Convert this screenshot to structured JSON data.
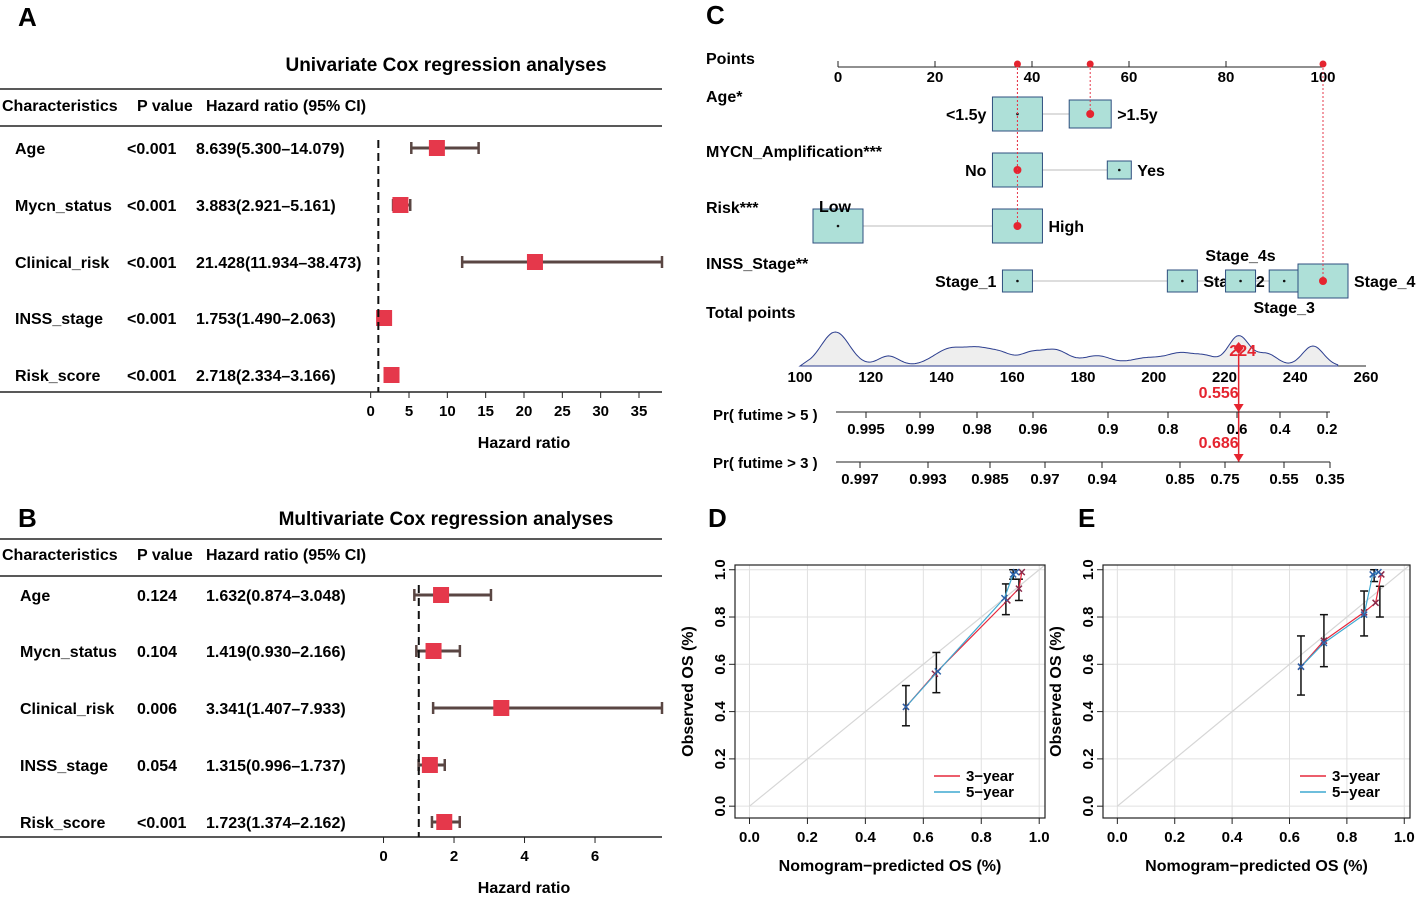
{
  "panels": {
    "A": "A",
    "B": "B",
    "C": "C",
    "D": "D",
    "E": "E"
  },
  "forest_headers": {
    "char": "Characteristics",
    "p": "P value",
    "hr": "Hazard ratio (95% CI)"
  },
  "chart_data": [
    {
      "id": "A",
      "type": "forest",
      "title": "Univariate Cox regression analyses",
      "xlabel": "Hazard ratio",
      "xlim": [
        -1,
        38
      ],
      "xticks": [
        0,
        5,
        10,
        15,
        20,
        25,
        30,
        35
      ],
      "ref": 1,
      "rows": [
        {
          "name": "Age",
          "p": "<0.001",
          "hr_text": "8.639(5.300–14.079)",
          "hr": 8.639,
          "lo": 5.3,
          "hi": 14.079
        },
        {
          "name": "Mycn_status",
          "p": "<0.001",
          "hr_text": "3.883(2.921–5.161)",
          "hr": 3.883,
          "lo": 2.921,
          "hi": 5.161
        },
        {
          "name": "Clinical_risk",
          "p": "<0.001",
          "hr_text": "21.428(11.934–38.473)",
          "hr": 21.428,
          "lo": 11.934,
          "hi": 38.473
        },
        {
          "name": "INSS_stage",
          "p": "<0.001",
          "hr_text": "1.753(1.490–2.063)",
          "hr": 1.753,
          "lo": 1.49,
          "hi": 2.063
        },
        {
          "name": "Risk_score",
          "p": "<0.001",
          "hr_text": "2.718(2.334–3.166)",
          "hr": 2.718,
          "lo": 2.334,
          "hi": 3.166
        }
      ]
    },
    {
      "id": "B",
      "type": "forest",
      "title": "Multivariate Cox regression analyses",
      "xlabel": "Hazard ratio",
      "xlim": [
        -0.1,
        7.9
      ],
      "xticks": [
        0,
        2,
        4,
        6
      ],
      "ref": 1,
      "rows": [
        {
          "name": "Age",
          "p": "0.124",
          "hr_text": "1.632(0.874–3.048)",
          "hr": 1.632,
          "lo": 0.874,
          "hi": 3.048
        },
        {
          "name": "Mycn_status",
          "p": "0.104",
          "hr_text": "1.419(0.930–2.166)",
          "hr": 1.419,
          "lo": 0.93,
          "hi": 2.166
        },
        {
          "name": "Clinical_risk",
          "p": "0.006",
          "hr_text": "3.341(1.407–7.933)",
          "hr": 3.341,
          "lo": 1.407,
          "hi": 7.933
        },
        {
          "name": "INSS_stage",
          "p": "0.054",
          "hr_text": "1.315(0.996–1.737)",
          "hr": 1.315,
          "lo": 0.996,
          "hi": 1.737
        },
        {
          "name": "Risk_score",
          "p": "<0.001",
          "hr_text": "1.723(1.374–2.162)",
          "hr": 1.723,
          "lo": 1.374,
          "hi": 2.162
        }
      ]
    },
    {
      "id": "C",
      "type": "nomogram",
      "points_label": "Points",
      "points_ticks": [
        0,
        20,
        40,
        60,
        80,
        100
      ],
      "variables": [
        {
          "label": "Age*",
          "levels": [
            {
              "name": "<1.5y",
              "points": 37
            },
            {
              "name": ">1.5y",
              "points": 52
            }
          ],
          "selected": ">1.5y"
        },
        {
          "label": "MYCN_Amplification***",
          "levels": [
            {
              "name": "No",
              "points": 37
            },
            {
              "name": "Yes",
              "points": 58
            }
          ],
          "selected": "No"
        },
        {
          "label": "Risk***",
          "levels": [
            {
              "name": "Low",
              "points": 0
            },
            {
              "name": "High",
              "points": 37
            }
          ],
          "selected": "High"
        },
        {
          "label": "INSS_Stage**",
          "levels": [
            {
              "name": "Stage_1",
              "points": 37
            },
            {
              "name": "Stage_2",
              "points": 71
            },
            {
              "name": "Stage_4s",
              "points": 83
            },
            {
              "name": "Stage_3",
              "points": 92
            },
            {
              "name": "Stage_4",
              "points": 100
            }
          ],
          "selected": "Stage_4"
        }
      ],
      "total_label": "Total points",
      "total_ticks": [
        100,
        120,
        140,
        160,
        180,
        200,
        220,
        240,
        260
      ],
      "total_selected": 224,
      "total_selected_label": "224",
      "probabilities": [
        {
          "label": "Pr( futime > 5 )",
          "ticks": [
            "0.995",
            "0.99",
            "0.98",
            "0.96",
            "0.9",
            "0.8",
            "0.6",
            "0.4",
            "0.2"
          ],
          "selected": 0.556,
          "selected_label": "0.556"
        },
        {
          "label": "Pr( futime > 3 )",
          "ticks": [
            "0.997",
            "0.993",
            "0.985",
            "0.97",
            "0.94",
            "0.85",
            "0.75",
            "0.55",
            "0.35"
          ],
          "selected": 0.686,
          "selected_label": "0.686"
        }
      ]
    },
    {
      "id": "D",
      "type": "calibration",
      "xlabel": "Nomogram−predicted OS (%)",
      "ylabel": "Observed OS (%)",
      "xlim": [
        -0.05,
        1.02
      ],
      "ylim": [
        -0.05,
        1.02
      ],
      "ticks": [
        "0.0",
        "0.2",
        "0.4",
        "0.6",
        "0.8",
        "1.0"
      ],
      "series": [
        {
          "name": "3−year",
          "color": "#e6283c",
          "x": [
            0.54,
            0.64,
            0.89,
            0.93,
            0.94
          ],
          "y": [
            0.42,
            0.56,
            0.87,
            0.92,
            0.99
          ]
        },
        {
          "name": "5−year",
          "color": "#3fa9d1",
          "x": [
            0.54,
            0.65,
            0.88,
            0.91,
            0.92
          ],
          "y": [
            0.42,
            0.57,
            0.88,
            0.98,
            0.99
          ]
        }
      ],
      "errorbars": [
        {
          "x": 0.54,
          "lo": 0.34,
          "hi": 0.51
        },
        {
          "x": 0.645,
          "lo": 0.48,
          "hi": 0.65
        },
        {
          "x": 0.885,
          "lo": 0.81,
          "hi": 0.94
        },
        {
          "x": 0.91,
          "lo": 0.96,
          "hi": 1.0
        },
        {
          "x": 0.93,
          "lo": 0.87,
          "hi": 0.96
        }
      ]
    },
    {
      "id": "E",
      "type": "calibration",
      "xlabel": "Nomogram−predicted OS (%)",
      "ylabel": "Observed OS (%)",
      "xlim": [
        -0.05,
        1.02
      ],
      "ylim": [
        -0.05,
        1.02
      ],
      "ticks": [
        "0.0",
        "0.2",
        "0.4",
        "0.6",
        "0.8",
        "1.0"
      ],
      "series": [
        {
          "name": "3−year",
          "color": "#e6283c",
          "x": [
            0.64,
            0.72,
            0.86,
            0.9,
            0.92
          ],
          "y": [
            0.59,
            0.7,
            0.82,
            0.86,
            0.98
          ]
        },
        {
          "name": "5−year",
          "color": "#3fa9d1",
          "x": [
            0.64,
            0.72,
            0.86,
            0.89,
            0.91
          ],
          "y": [
            0.59,
            0.69,
            0.81,
            0.98,
            0.99
          ]
        }
      ],
      "errorbars": [
        {
          "x": 0.64,
          "lo": 0.47,
          "hi": 0.72
        },
        {
          "x": 0.72,
          "lo": 0.59,
          "hi": 0.81
        },
        {
          "x": 0.86,
          "lo": 0.72,
          "hi": 0.91
        },
        {
          "x": 0.895,
          "lo": 0.95,
          "hi": 1.0
        },
        {
          "x": 0.915,
          "lo": 0.8,
          "hi": 0.93
        }
      ]
    }
  ]
}
